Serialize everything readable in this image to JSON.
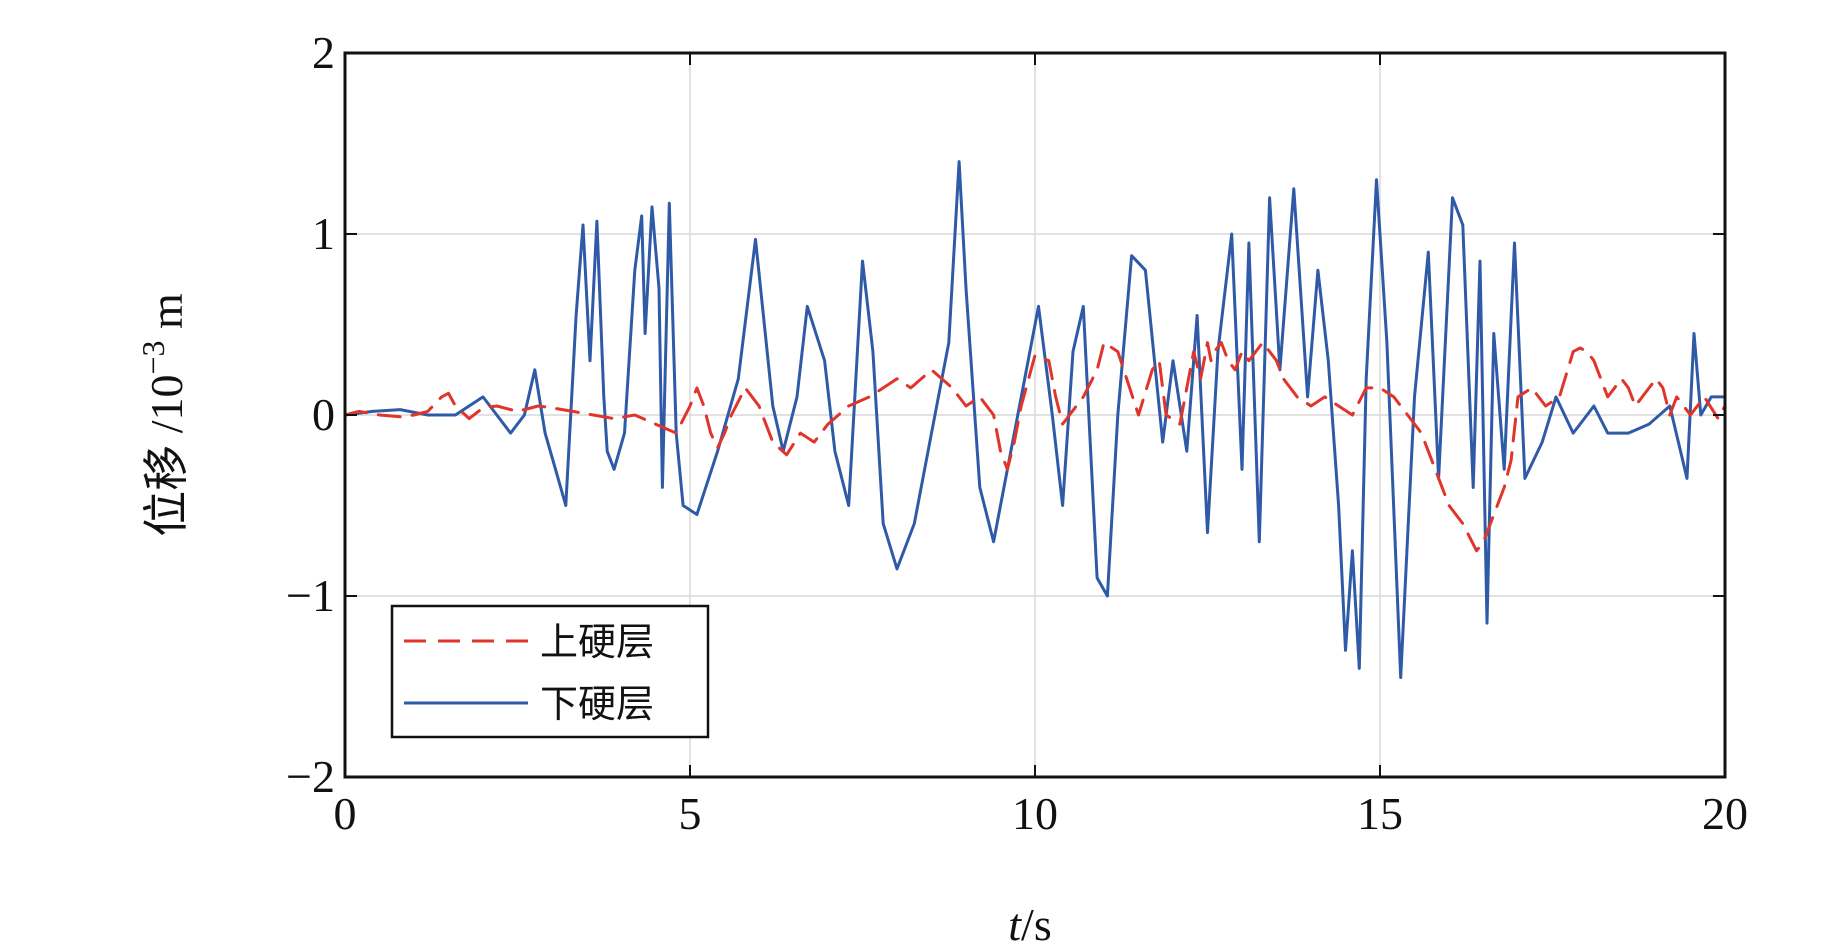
{
  "chart_data": {
    "type": "line",
    "xlabel_italic": "t",
    "xlabel_unit": "/s",
    "ylabel_prefix": "位移 /10",
    "ylabel_exp": "−3",
    "ylabel_unit": " m",
    "xlim": [
      0,
      20
    ],
    "ylim": [
      -2,
      2
    ],
    "xticks": [
      0,
      5,
      10,
      15,
      20
    ],
    "xtick_labels": [
      "0",
      "5",
      "10",
      "15",
      "20"
    ],
    "yticks": [
      -2,
      -1,
      0,
      1,
      2
    ],
    "ytick_labels": [
      "−2",
      "−1",
      "0",
      "1",
      "2"
    ],
    "grid": true,
    "legend_position": "bottom-left",
    "series": [
      {
        "name": "上硬层",
        "color": "#e0352b",
        "style": "dashed",
        "x": [
          0,
          0.2,
          0.5,
          0.8,
          1.0,
          1.2,
          1.4,
          1.5,
          1.6,
          1.8,
          2.0,
          2.2,
          2.5,
          2.8,
          3.0,
          3.3,
          3.6,
          3.9,
          4.2,
          4.5,
          4.8,
          5.0,
          5.1,
          5.2,
          5.3,
          5.4,
          5.5,
          5.6,
          5.8,
          6.0,
          6.2,
          6.4,
          6.6,
          6.8,
          7.0,
          7.3,
          7.6,
          8.0,
          8.2,
          8.5,
          8.8,
          9.0,
          9.2,
          9.4,
          9.5,
          9.6,
          9.7,
          9.8,
          10.0,
          10.2,
          10.3,
          10.4,
          10.5,
          10.7,
          10.9,
          11.0,
          11.2,
          11.5,
          11.7,
          11.8,
          11.9,
          12.1,
          12.3,
          12.4,
          12.5,
          12.55,
          12.6,
          12.7,
          12.8,
          12.9,
          13.0,
          13.1,
          13.2,
          13.3,
          13.4,
          13.5,
          13.6,
          13.8,
          14.0,
          14.2,
          14.4,
          14.6,
          14.8,
          15.0,
          15.2,
          15.4,
          15.6,
          15.8,
          16.0,
          16.2,
          16.4,
          16.5,
          16.6,
          16.7,
          16.8,
          16.9,
          17.0,
          17.2,
          17.4,
          17.6,
          17.8,
          17.9,
          18.0,
          18.1,
          18.3,
          18.5,
          18.6,
          18.7,
          18.9,
          19.0,
          19.1,
          19.2,
          19.3,
          19.5,
          19.7,
          19.9,
          20.0
        ],
        "y": [
          0.0,
          0.02,
          0.0,
          -0.01,
          0.0,
          0.02,
          0.1,
          0.12,
          0.05,
          -0.02,
          0.04,
          0.05,
          0.02,
          0.05,
          0.04,
          0.02,
          0.0,
          -0.02,
          0.0,
          -0.05,
          -0.1,
          0.05,
          0.15,
          0.05,
          -0.1,
          -0.18,
          -0.1,
          0.0,
          0.15,
          0.05,
          -0.15,
          -0.22,
          -0.1,
          -0.15,
          -0.05,
          0.05,
          0.1,
          0.2,
          0.15,
          0.25,
          0.15,
          0.05,
          0.1,
          0.0,
          -0.2,
          -0.3,
          -0.15,
          0.05,
          0.33,
          0.3,
          0.1,
          -0.05,
          0.0,
          0.1,
          0.25,
          0.4,
          0.35,
          0.0,
          0.25,
          0.3,
          0.0,
          -0.05,
          0.35,
          0.2,
          0.4,
          0.3,
          0.35,
          0.4,
          0.3,
          0.25,
          0.35,
          0.3,
          0.35,
          0.4,
          0.35,
          0.3,
          0.2,
          0.1,
          0.05,
          0.1,
          0.05,
          0.0,
          0.15,
          0.15,
          0.1,
          0.0,
          -0.1,
          -0.3,
          -0.5,
          -0.6,
          -0.75,
          -0.7,
          -0.6,
          -0.5,
          -0.4,
          -0.25,
          0.1,
          0.15,
          0.05,
          0.1,
          0.35,
          0.37,
          0.35,
          0.3,
          0.1,
          0.2,
          0.15,
          0.05,
          0.15,
          0.2,
          0.15,
          0.0,
          0.1,
          0.0,
          0.1,
          -0.02,
          0.05
        ]
      },
      {
        "name": "下硬层",
        "color": "#2f5aa7",
        "style": "solid",
        "x": [
          0,
          0.4,
          0.8,
          1.2,
          1.6,
          2.0,
          2.2,
          2.4,
          2.6,
          2.75,
          2.9,
          3.05,
          3.2,
          3.35,
          3.45,
          3.55,
          3.65,
          3.75,
          3.8,
          3.9,
          4.05,
          4.2,
          4.3,
          4.35,
          4.45,
          4.55,
          4.6,
          4.7,
          4.8,
          4.9,
          5.1,
          5.4,
          5.7,
          5.95,
          6.2,
          6.35,
          6.55,
          6.7,
          6.95,
          7.1,
          7.3,
          7.5,
          7.65,
          7.8,
          8.0,
          8.25,
          8.5,
          8.75,
          8.9,
          9.0,
          9.2,
          9.4,
          9.6,
          9.85,
          10.05,
          10.25,
          10.4,
          10.55,
          10.7,
          10.9,
          11.05,
          11.2,
          11.4,
          11.6,
          11.85,
          12.0,
          12.2,
          12.35,
          12.5,
          12.65,
          12.85,
          13.0,
          13.1,
          13.25,
          13.4,
          13.55,
          13.75,
          13.95,
          14.1,
          14.25,
          14.4,
          14.5,
          14.6,
          14.7,
          14.8,
          14.95,
          15.1,
          15.3,
          15.5,
          15.7,
          15.85,
          16.05,
          16.2,
          16.35,
          16.45,
          16.55,
          16.65,
          16.8,
          16.95,
          17.1,
          17.35,
          17.55,
          17.8,
          18.1,
          18.3,
          18.6,
          18.9,
          19.2,
          19.45,
          19.55,
          19.65,
          19.8,
          20.0
        ],
        "y": [
          0.0,
          0.02,
          0.03,
          0.0,
          0.0,
          0.1,
          0.0,
          -0.1,
          0.0,
          0.25,
          -0.1,
          -0.3,
          -0.5,
          0.55,
          1.05,
          0.3,
          1.07,
          0.1,
          -0.2,
          -0.3,
          -0.1,
          0.8,
          1.1,
          0.45,
          1.15,
          0.7,
          -0.4,
          1.17,
          -0.1,
          -0.5,
          -0.55,
          -0.2,
          0.2,
          0.97,
          0.05,
          -0.2,
          0.1,
          0.6,
          0.3,
          -0.2,
          -0.5,
          0.85,
          0.35,
          -0.6,
          -0.85,
          -0.6,
          -0.1,
          0.4,
          1.4,
          0.7,
          -0.4,
          -0.7,
          -0.3,
          0.2,
          0.6,
          0.0,
          -0.5,
          0.35,
          0.6,
          -0.9,
          -1.0,
          0.0,
          0.88,
          0.8,
          -0.15,
          0.3,
          -0.2,
          0.55,
          -0.65,
          0.35,
          1.0,
          -0.3,
          0.95,
          -0.7,
          1.2,
          0.25,
          1.25,
          0.1,
          0.8,
          0.3,
          -0.5,
          -1.3,
          -0.75,
          -1.4,
          0.2,
          1.3,
          0.4,
          -1.45,
          0.1,
          0.9,
          -0.35,
          1.2,
          1.05,
          -0.4,
          0.85,
          -1.15,
          0.45,
          -0.3,
          0.95,
          -0.35,
          -0.15,
          0.1,
          -0.1,
          0.05,
          -0.1,
          -0.1,
          -0.05,
          0.05,
          -0.35,
          0.45,
          0.0,
          0.1,
          0.1
        ]
      }
    ]
  }
}
